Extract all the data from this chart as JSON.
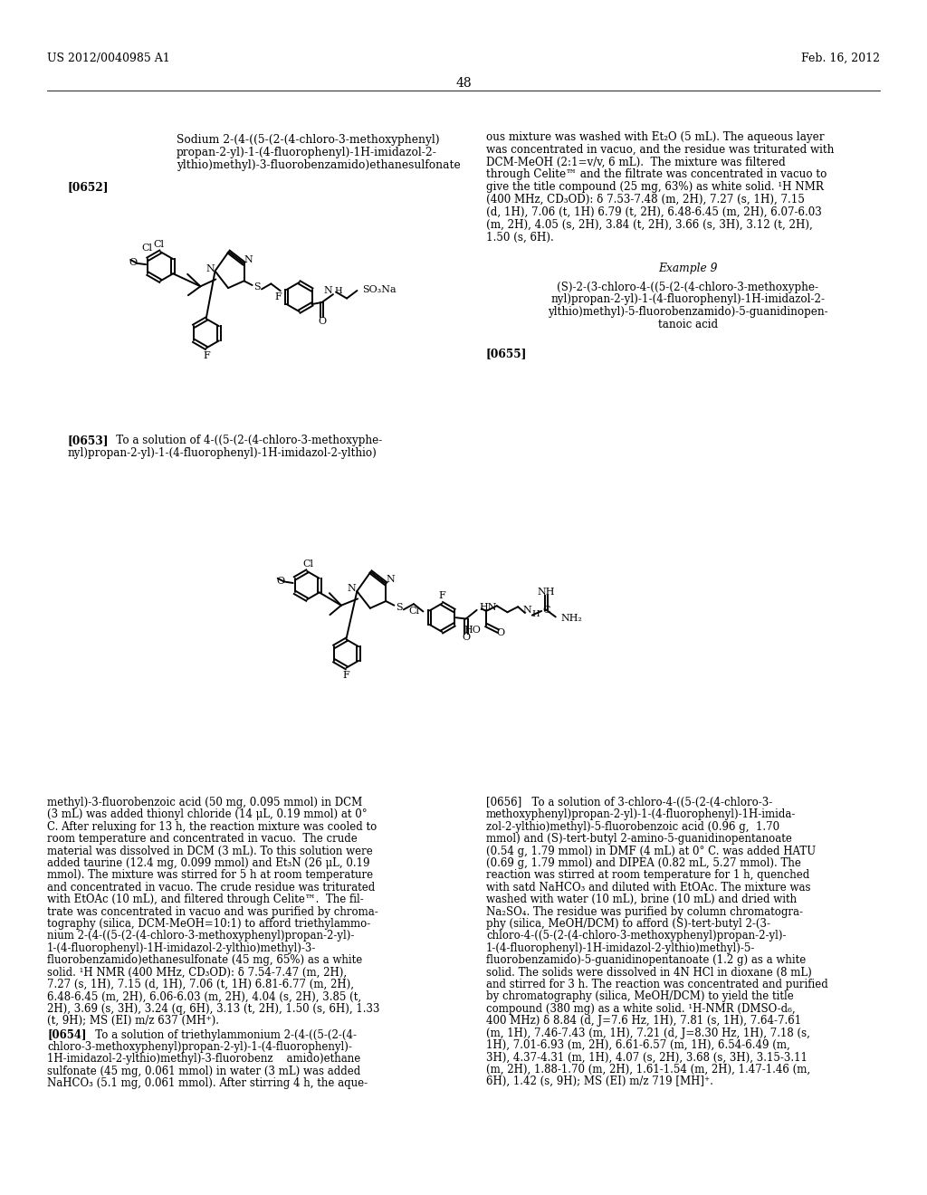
{
  "background_color": "#ffffff",
  "page_number": "48",
  "header_left": "US 2012/0040985 A1",
  "header_right": "Feb. 16, 2012",
  "title_line1": "Sodium 2-(4-((5-(2-(4-chloro-3-methoxyphenyl)",
  "title_line2": "propan-2-yl)-1-(4-fluorophenyl)-1H-imidazol-2-",
  "title_line3": "ylthio)methyl)-3-fluorobenzamido)ethanesulfonate",
  "para0652": "[0652]",
  "right_col_lines": [
    "ous mixture was washed with Et₂O (5 mL). The aqueous layer",
    "was concentrated in vacuo, and the residue was triturated with",
    "DCM-MeOH (2:1=v/v, 6 mL).  The mixture was filtered",
    "through Celite™ and the filtrate was concentrated in vacuo to",
    "give the title compound (25 mg, 63%) as white solid. ¹H NMR",
    "(400 MHz, CD₃OD): δ 7.53-7.48 (m, 2H), 7.27 (s, 1H), 7.15",
    "(d, 1H), 7.06 (t, 1H) 6.79 (t, 2H), 6.48-6.45 (m, 2H), 6.07-6.03",
    "(m, 2H), 4.05 (s, 2H), 3.84 (t, 2H), 3.66 (s, 3H), 3.12 (t, 2H),",
    "1.50 (s, 6H)."
  ],
  "example9_header": "Example 9",
  "example9_lines": [
    "(S)-2-(3-chloro-4-((5-(2-(4-chloro-3-methoxyphe-",
    "nyl)propan-2-yl)-1-(4-fluorophenyl)-1H-imidazol-2-",
    "ylthio)methyl)-5-fluorobenzamido)-5-guanidinopen-",
    "tanoic acid"
  ],
  "para0653_label": "[0653]",
  "para0653_text1": "   To a solution of 4-((5-(2-(4-chloro-3-methoxyphe-",
  "para0653_text2": "nyl)propan-2-yl)-1-(4-fluorophenyl)-1H-imidazol-2-ylthio)",
  "para0655_label": "[0655]",
  "left_bottom_lines": [
    "methyl)-3-fluorobenzoic acid (50 mg, 0.095 mmol) in DCM",
    "(3 mL) was added thionyl chloride (14 μL, 0.19 mmol) at 0°",
    "C. After reluxing for 13 h, the reaction mixture was cooled to",
    "room temperature and concentrated in vacuo.  The crude",
    "material was dissolved in DCM (3 mL). To this solution were",
    "added taurine (12.4 mg, 0.099 mmol) and Et₃N (26 μL, 0.19",
    "mmol). The mixture was stirred for 5 h at room temperature",
    "and concentrated in vacuo. The crude residue was triturated",
    "with EtOAc (10 mL), and filtered through Celite™.  The fil-",
    "trate was concentrated in vacuo and was purified by chroma-",
    "tography (silica, DCM-MeOH=10:1) to afford triethylammo-",
    "nium 2-(4-((5-(2-(4-chloro-3-methoxyphenyl)propan-2-yl)-",
    "1-(4-fluorophenyl)-1H-imidazol-2-ylthio)methyl)-3-",
    "fluorobenzamido)ethanesulfonate (45 mg, 65%) as a white",
    "solid. ¹H NMR (400 MHz, CD₃OD): δ 7.54-7.47 (m, 2H),",
    "7.27 (s, 1H), 7.15 (d, 1H), 7.06 (t, 1H) 6.81-6.77 (m, 2H),",
    "6.48-6.45 (m, 2H), 6.06-6.03 (m, 2H), 4.04 (s, 2H), 3.85 (t,",
    "2H), 3.69 (s, 3H), 3.24 (q, 6H), 3.13 (t, 2H), 1.50 (s, 6H), 1.33",
    "(t, 9H); MS (EI) m/z 637 (MH⁺)."
  ],
  "para0654_label": "[0654]",
  "para0654_text1": "   To a solution of triethylammonium 2-(4-((5-(2-(4-",
  "para0654_text2": "chloro-3-methoxyphenyl)propan-2-yl)-1-(4-fluorophenyl)-",
  "para0654_text3": "1H-imidazol-2-ylthio)methyl)-3-fluorobenz    amido)ethane",
  "para0654_text4": "sulfonate (45 mg, 0.061 mmol) in water (3 mL) was added",
  "para0654_text5": "NaHCO₃ (5.1 mg, 0.061 mmol). After stirring 4 h, the aque-",
  "right_bottom_lines": [
    "[0656]   To a solution of 3-chloro-4-((5-(2-(4-chloro-3-",
    "methoxyphenyl)propan-2-yl)-1-(4-fluorophenyl)-1H-imida-",
    "zol-2-ylthio)methyl)-5-fluorobenzoic acid (0.96 g,  1.70",
    "mmol) and (S)-tert-butyl 2-amino-5-guanidinopentanoate",
    "(0.54 g, 1.79 mmol) in DMF (4 mL) at 0° C. was added HATU",
    "(0.69 g, 1.79 mmol) and DIPEA (0.82 mL, 5.27 mmol). The",
    "reaction was stirred at room temperature for 1 h, quenched",
    "with satd NaHCO₃ and diluted with EtOAc. The mixture was",
    "washed with water (10 mL), brine (10 mL) and dried with",
    "Na₂SO₄. The residue was purified by column chromatogra-",
    "phy (silica, MeOH/DCM) to afford (S)-tert-butyl 2-(3-",
    "chloro-4-((5-(2-(4-chloro-3-methoxyphenyl)propan-2-yl)-",
    "1-(4-fluorophenyl)-1H-imidazol-2-ylthio)methyl)-5-",
    "fluorobenzamido)-5-guanidinopentanoate (1.2 g) as a white",
    "solid. The solids were dissolved in 4N HCl in dioxane (8 mL)",
    "and stirred for 3 h. The reaction was concentrated and purified",
    "by chromatography (silica, MeOH/DCM) to yield the title",
    "compound (380 mg) as a white solid. ¹H-NMR (DMSO-d₆,",
    "400 MHz) δ 8.84 (d, J=7.6 Hz, 1H), 7.81 (s, 1H), 7.64-7.61",
    "(m, 1H), 7.46-7.43 (m, 1H), 7.21 (d, J=8.30 Hz, 1H), 7.18 (s,",
    "1H), 7.01-6.93 (m, 2H), 6.61-6.57 (m, 1H), 6.54-6.49 (m,",
    "3H), 4.37-4.31 (m, 1H), 4.07 (s, 2H), 3.68 (s, 3H), 3.15-3.11",
    "(m, 2H), 1.88-1.70 (m, 2H), 1.61-1.54 (m, 2H), 1.47-1.46 (m,",
    "6H), 1.42 (s, 9H); MS (EI) m/z 719 [MH]⁺."
  ]
}
